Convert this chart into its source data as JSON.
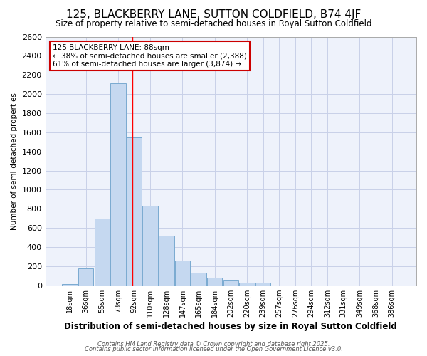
{
  "title": "125, BLACKBERRY LANE, SUTTON COLDFIELD, B74 4JF",
  "subtitle": "Size of property relative to semi-detached houses in Royal Sutton Coldfield",
  "xlabel": "Distribution of semi-detached houses by size in Royal Sutton Coldfield",
  "ylabel": "Number of semi-detached properties",
  "categories": [
    "18sqm",
    "36sqm",
    "55sqm",
    "73sqm",
    "92sqm",
    "110sqm",
    "128sqm",
    "147sqm",
    "165sqm",
    "184sqm",
    "202sqm",
    "220sqm",
    "239sqm",
    "257sqm",
    "276sqm",
    "294sqm",
    "312sqm",
    "331sqm",
    "349sqm",
    "368sqm",
    "386sqm"
  ],
  "values": [
    10,
    175,
    700,
    2110,
    1550,
    830,
    520,
    255,
    130,
    80,
    55,
    30,
    25,
    0,
    0,
    0,
    0,
    0,
    0,
    0,
    0
  ],
  "bar_color": "#c5d8f0",
  "bar_edgecolor": "#7aaad0",
  "background_color": "#ffffff",
  "plot_bg_color": "#eef2fb",
  "grid_color": "#c8d0e8",
  "redline_x": 3.9,
  "annotation_title": "125 BLACKBERRY LANE: 88sqm",
  "annotation_line1": "← 38% of semi-detached houses are smaller (2,388)",
  "annotation_line2": "61% of semi-detached houses are larger (3,874) →",
  "annotation_box_color": "#ffffff",
  "annotation_box_edgecolor": "#cc0000",
  "ylim": [
    0,
    2600
  ],
  "yticks": [
    0,
    200,
    400,
    600,
    800,
    1000,
    1200,
    1400,
    1600,
    1800,
    2000,
    2200,
    2400,
    2600
  ],
  "footer1": "Contains HM Land Registry data © Crown copyright and database right 2025.",
  "footer2": "Contains public sector information licensed under the Open Government Licence v3.0."
}
